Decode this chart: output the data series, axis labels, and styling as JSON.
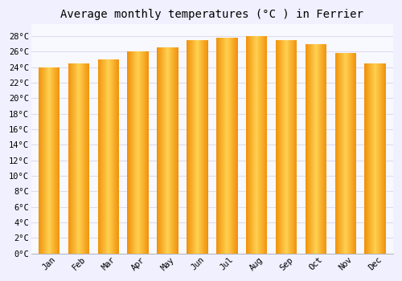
{
  "title": "Average monthly temperatures (°C ) in Ferrier",
  "months": [
    "Jan",
    "Feb",
    "Mar",
    "Apr",
    "May",
    "Jun",
    "Jul",
    "Aug",
    "Sep",
    "Oct",
    "Nov",
    "Dec"
  ],
  "values": [
    24.0,
    24.5,
    25.0,
    26.0,
    26.5,
    27.5,
    27.8,
    28.0,
    27.5,
    27.0,
    25.8,
    24.5
  ],
  "bar_color_center": "#FFD050",
  "bar_color_edge": "#F0900A",
  "background_color": "#F0F0FF",
  "plot_bg_color": "#F8F8FF",
  "grid_color": "#DDDDEE",
  "ytick_min": 0,
  "ytick_max": 28,
  "ytick_step": 2,
  "title_fontsize": 10,
  "tick_fontsize": 7.5,
  "tick_font_family": "monospace"
}
